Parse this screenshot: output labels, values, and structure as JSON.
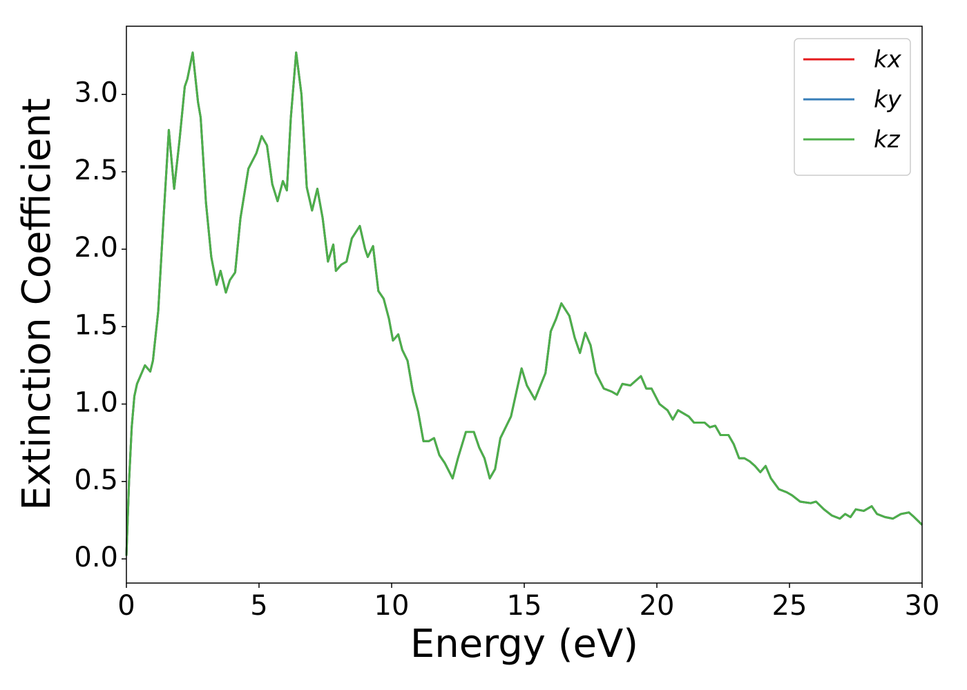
{
  "chart_data": {
    "type": "line",
    "xlabel": "Energy (eV)",
    "ylabel": "Extinction Coefficient",
    "x": [
      0,
      0.1,
      0.2,
      0.3,
      0.4,
      0.5,
      0.7,
      0.9,
      1.0,
      1.2,
      1.4,
      1.6,
      1.8,
      2.0,
      2.2,
      2.3,
      2.5,
      2.7,
      2.8,
      3.0,
      3.2,
      3.4,
      3.55,
      3.75,
      3.9,
      4.1,
      4.3,
      4.6,
      4.9,
      5.1,
      5.3,
      5.5,
      5.7,
      5.9,
      6.05,
      6.2,
      6.4,
      6.6,
      6.8,
      7.0,
      7.2,
      7.4,
      7.6,
      7.8,
      7.9,
      8.1,
      8.3,
      8.5,
      8.8,
      9.0,
      9.1,
      9.3,
      9.5,
      9.7,
      9.9,
      10.05,
      10.25,
      10.4,
      10.6,
      10.8,
      11.0,
      11.2,
      11.4,
      11.6,
      11.8,
      12.0,
      12.3,
      12.5,
      12.8,
      13.1,
      13.3,
      13.5,
      13.7,
      13.9,
      14.1,
      14.3,
      14.5,
      14.9,
      15.1,
      15.4,
      15.8,
      16.0,
      16.2,
      16.4,
      16.7,
      16.9,
      17.1,
      17.3,
      17.5,
      17.7,
      18.0,
      18.3,
      18.5,
      18.7,
      19.0,
      19.2,
      19.4,
      19.6,
      19.8,
      20.1,
      20.4,
      20.6,
      20.8,
      21.2,
      21.4,
      21.8,
      22.0,
      22.2,
      22.4,
      22.7,
      22.9,
      23.1,
      23.3,
      23.5,
      23.7,
      23.9,
      24.1,
      24.3,
      24.6,
      24.9,
      25.1,
      25.4,
      25.8,
      26.0,
      26.3,
      26.6,
      26.9,
      27.1,
      27.3,
      27.5,
      27.8,
      28.1,
      28.3,
      28.6,
      28.9,
      29.2,
      29.5,
      29.7,
      30
    ],
    "series": [
      {
        "name": "kx",
        "color": "#e41a1c",
        "values": [
          0.02,
          0.5,
          0.85,
          1.05,
          1.13,
          1.17,
          1.25,
          1.21,
          1.28,
          1.6,
          2.2,
          2.77,
          2.39,
          2.7,
          3.05,
          3.1,
          3.27,
          2.95,
          2.85,
          2.3,
          1.95,
          1.77,
          1.86,
          1.72,
          1.8,
          1.85,
          2.2,
          2.52,
          2.62,
          2.73,
          2.67,
          2.42,
          2.31,
          2.44,
          2.38,
          2.85,
          3.27,
          3.0,
          2.4,
          2.25,
          2.39,
          2.2,
          1.92,
          2.03,
          1.86,
          1.9,
          1.92,
          2.07,
          2.15,
          2.0,
          1.95,
          2.02,
          1.73,
          1.68,
          1.55,
          1.41,
          1.45,
          1.35,
          1.28,
          1.08,
          0.95,
          0.76,
          0.76,
          0.78,
          0.67,
          0.62,
          0.52,
          0.65,
          0.82,
          0.82,
          0.72,
          0.65,
          0.52,
          0.58,
          0.78,
          0.85,
          0.92,
          1.23,
          1.12,
          1.03,
          1.2,
          1.47,
          1.55,
          1.65,
          1.57,
          1.43,
          1.33,
          1.46,
          1.38,
          1.2,
          1.1,
          1.08,
          1.06,
          1.13,
          1.12,
          1.15,
          1.18,
          1.1,
          1.1,
          1.0,
          0.96,
          0.9,
          0.96,
          0.92,
          0.88,
          0.88,
          0.85,
          0.86,
          0.8,
          0.8,
          0.74,
          0.65,
          0.65,
          0.63,
          0.6,
          0.56,
          0.6,
          0.52,
          0.45,
          0.43,
          0.41,
          0.37,
          0.36,
          0.37,
          0.32,
          0.28,
          0.26,
          0.29,
          0.27,
          0.32,
          0.31,
          0.34,
          0.29,
          0.27,
          0.26,
          0.29,
          0.3,
          0.27,
          0.22
        ]
      },
      {
        "name": "ky",
        "color": "#377eb8",
        "values": [
          0.02,
          0.5,
          0.85,
          1.05,
          1.13,
          1.17,
          1.25,
          1.21,
          1.28,
          1.6,
          2.2,
          2.77,
          2.39,
          2.7,
          3.05,
          3.1,
          3.27,
          2.95,
          2.85,
          2.3,
          1.95,
          1.77,
          1.86,
          1.72,
          1.8,
          1.85,
          2.2,
          2.52,
          2.62,
          2.73,
          2.67,
          2.42,
          2.31,
          2.44,
          2.38,
          2.85,
          3.27,
          3.0,
          2.4,
          2.25,
          2.39,
          2.2,
          1.92,
          2.03,
          1.86,
          1.9,
          1.92,
          2.07,
          2.15,
          2.0,
          1.95,
          2.02,
          1.73,
          1.68,
          1.55,
          1.41,
          1.45,
          1.35,
          1.28,
          1.08,
          0.95,
          0.76,
          0.76,
          0.78,
          0.67,
          0.62,
          0.52,
          0.65,
          0.82,
          0.82,
          0.72,
          0.65,
          0.52,
          0.58,
          0.78,
          0.85,
          0.92,
          1.23,
          1.12,
          1.03,
          1.2,
          1.47,
          1.55,
          1.65,
          1.57,
          1.43,
          1.33,
          1.46,
          1.38,
          1.2,
          1.1,
          1.08,
          1.06,
          1.13,
          1.12,
          1.15,
          1.18,
          1.1,
          1.1,
          1.0,
          0.96,
          0.9,
          0.96,
          0.92,
          0.88,
          0.88,
          0.85,
          0.86,
          0.8,
          0.8,
          0.74,
          0.65,
          0.65,
          0.63,
          0.6,
          0.56,
          0.6,
          0.52,
          0.45,
          0.43,
          0.41,
          0.37,
          0.36,
          0.37,
          0.32,
          0.28,
          0.26,
          0.29,
          0.27,
          0.32,
          0.31,
          0.34,
          0.29,
          0.27,
          0.26,
          0.29,
          0.3,
          0.27,
          0.22
        ]
      },
      {
        "name": "kz",
        "color": "#4daf4a",
        "values": [
          0.02,
          0.5,
          0.85,
          1.05,
          1.13,
          1.17,
          1.25,
          1.21,
          1.28,
          1.6,
          2.2,
          2.77,
          2.39,
          2.7,
          3.05,
          3.1,
          3.27,
          2.95,
          2.85,
          2.3,
          1.95,
          1.77,
          1.86,
          1.72,
          1.8,
          1.85,
          2.2,
          2.52,
          2.62,
          2.73,
          2.67,
          2.42,
          2.31,
          2.44,
          2.38,
          2.85,
          3.27,
          3.0,
          2.4,
          2.25,
          2.39,
          2.2,
          1.92,
          2.03,
          1.86,
          1.9,
          1.92,
          2.07,
          2.15,
          2.0,
          1.95,
          2.02,
          1.73,
          1.68,
          1.55,
          1.41,
          1.45,
          1.35,
          1.28,
          1.08,
          0.95,
          0.76,
          0.76,
          0.78,
          0.67,
          0.62,
          0.52,
          0.65,
          0.82,
          0.82,
          0.72,
          0.65,
          0.52,
          0.58,
          0.78,
          0.85,
          0.92,
          1.23,
          1.12,
          1.03,
          1.2,
          1.47,
          1.55,
          1.65,
          1.57,
          1.43,
          1.33,
          1.46,
          1.38,
          1.2,
          1.1,
          1.08,
          1.06,
          1.13,
          1.12,
          1.15,
          1.18,
          1.1,
          1.1,
          1.0,
          0.96,
          0.9,
          0.96,
          0.92,
          0.88,
          0.88,
          0.85,
          0.86,
          0.8,
          0.8,
          0.74,
          0.65,
          0.65,
          0.63,
          0.6,
          0.56,
          0.6,
          0.52,
          0.45,
          0.43,
          0.41,
          0.37,
          0.36,
          0.37,
          0.32,
          0.28,
          0.26,
          0.29,
          0.27,
          0.32,
          0.31,
          0.34,
          0.29,
          0.27,
          0.26,
          0.29,
          0.3,
          0.27,
          0.22
        ]
      }
    ],
    "xlim": [
      0,
      30
    ],
    "xticks": [
      0,
      5,
      10,
      15,
      20,
      25,
      30
    ],
    "ylim": [
      -0.156,
      3.44
    ],
    "yticks": [
      {
        "value": 0,
        "label": "0.0"
      },
      0.5,
      {
        "value": 1,
        "label": "1.0"
      },
      1.5,
      {
        "value": 2,
        "label": "2.0"
      },
      2.5,
      {
        "value": 3,
        "label": "3.0"
      }
    ],
    "grid": false,
    "legend": "upper right"
  }
}
